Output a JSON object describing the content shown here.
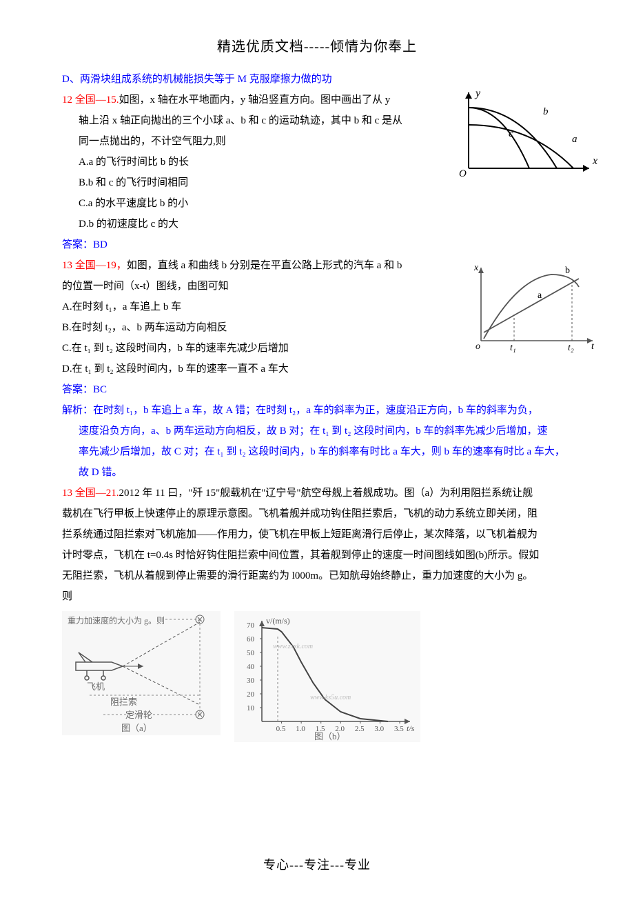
{
  "header": "精选优质文档-----倾情为你奉上",
  "footer": "专心---专注---专业",
  "lineD": "D、两滑块组成系统的机械能损失等于 M 克服摩擦力做的功",
  "q12": {
    "tag": "12 全国—15.",
    "body1": "如图，x 轴在水平地面内，y 轴沿竖直方向。图中画出了从 y",
    "body2": "轴上沿 x 轴正向抛出的三个小球 a、b 和 c 的运动轨迹，其中 b 和 c 是从",
    "body3": "同一点抛出的，不计空气阻力,则",
    "optA": "A.a 的飞行时间比 b 的长",
    "optB": "B.b 和 c 的飞行时间相同",
    "optC": "C.a 的水平速度比 b 的小",
    "optD": "D.b 的初速度比 c 的大",
    "ansLabel": "答案：",
    "ans": "BD",
    "fig": {
      "xlabel": "x",
      "ylabel": "y",
      "O": "O",
      "a": "a",
      "b": "b",
      "c": "c",
      "stroke": "#000000",
      "bg": "#ffffff"
    }
  },
  "q13a": {
    "tag": "13 全国—19，",
    "body1": "如图，直线 a 和曲线 b 分别是在平直公路上形式的汽车 a 和 b",
    "body2": "的位置一时间（x-t）图线，由图可知",
    "optA": "A.在时刻 t₁，a 车追上 b 车",
    "optB": "B.在时刻 t₂，a、b 两车运动方向相反",
    "optC": "C.在 t₁ 到 t₂ 这段时间内，b 车的速率先减少后增加",
    "optD": "D.在 t₁ 到 t₂ 这段时间内，b 车的速率一直不 a 车大",
    "ansLabel": "答案：",
    "ans": "BC",
    "explLabel": "解析：",
    "expl1": "在时刻 t₁，b 车追上 a 车，故 A 错；在时刻 t₂，a 车的斜率为正，速度沿正方向，b 车的斜率为负，",
    "expl2": "速度沿负方向，a、b 两车运动方向相反，故 B 对；在 t₁ 到 t₂ 这段时间内，b 车的斜率先减少后增加，速",
    "expl3": "率先减少后增加，故 C 对；在 t₁ 到 t₂ 这段时间内，b 车的斜率有时比 a 车大，则 b 车的速率有时比 a 车大，",
    "expl4": "故 D 错。",
    "fig": {
      "xlabel": "t",
      "ylabel": "x",
      "o": "o",
      "t1": "t₁",
      "t2": "t₂",
      "a": "a",
      "b": "b",
      "stroke": "#555555"
    }
  },
  "q13b": {
    "tag": "13 全国—21.",
    "body1": "2012 年 11 曰，\"歼 15\"舰载机在\"辽宁号\"航空母舰上着舰成功。图（a）为利用阻拦系统让舰",
    "body2": "载机在飞行甲板上快速停止的原理示意图。飞机着舰并成功钩住阻拦索后，飞机的动力系统立即关闭，阻",
    "body3": "拦系统通过阻拦索对飞机施加——作用力，使飞机在甲板上短距离滑行后停止，某次降落，以飞机着舰为",
    "body4": "计时零点，飞机在 t=0.4s 时恰好钩住阻拦索中间位置，其着舰到停止的速度一时间图线如图(b)所示。假如",
    "body5": "无阻拦索，飞机从着舰到停止需要的滑行距离约为 l000m。已知航母始终静止，重力加速度的大小为 g。",
    "body6": "则",
    "figA": {
      "caption": "图（a）",
      "label_g": "重力加速度的大小为 g。则",
      "label_plane": "飞机",
      "label_rope": "阻拦索",
      "label_pulley": "定滑轮",
      "stroke": "#5a5a5a",
      "bg": "#f4f4f4"
    },
    "figB": {
      "caption": "图（b）",
      "ylabel": "v/(m/s)",
      "xlabel": "t/s",
      "yticks": [
        "10",
        "20",
        "30",
        "40",
        "50",
        "60",
        "70"
      ],
      "xticks": [
        "0.5",
        "1.0",
        "1.5",
        "2.0",
        "2.5",
        "3.0",
        "3.5"
      ],
      "wm1": "www.zxxk.com",
      "wm2": "www.ks5u.com",
      "stroke": "#5a5a5a",
      "bg": "#f6f6f6",
      "curve": [
        [
          0,
          68
        ],
        [
          0.4,
          67
        ],
        [
          0.5,
          65
        ],
        [
          0.8,
          54
        ],
        [
          1.0,
          43
        ],
        [
          1.3,
          28
        ],
        [
          1.6,
          16
        ],
        [
          2.0,
          7
        ],
        [
          2.5,
          2
        ],
        [
          3.2,
          0
        ]
      ]
    }
  },
  "colors": {
    "text": "#000000",
    "red": "#ff0000",
    "blue": "#0000ff",
    "gray": "#6b6b6b",
    "bg": "#ffffff"
  }
}
